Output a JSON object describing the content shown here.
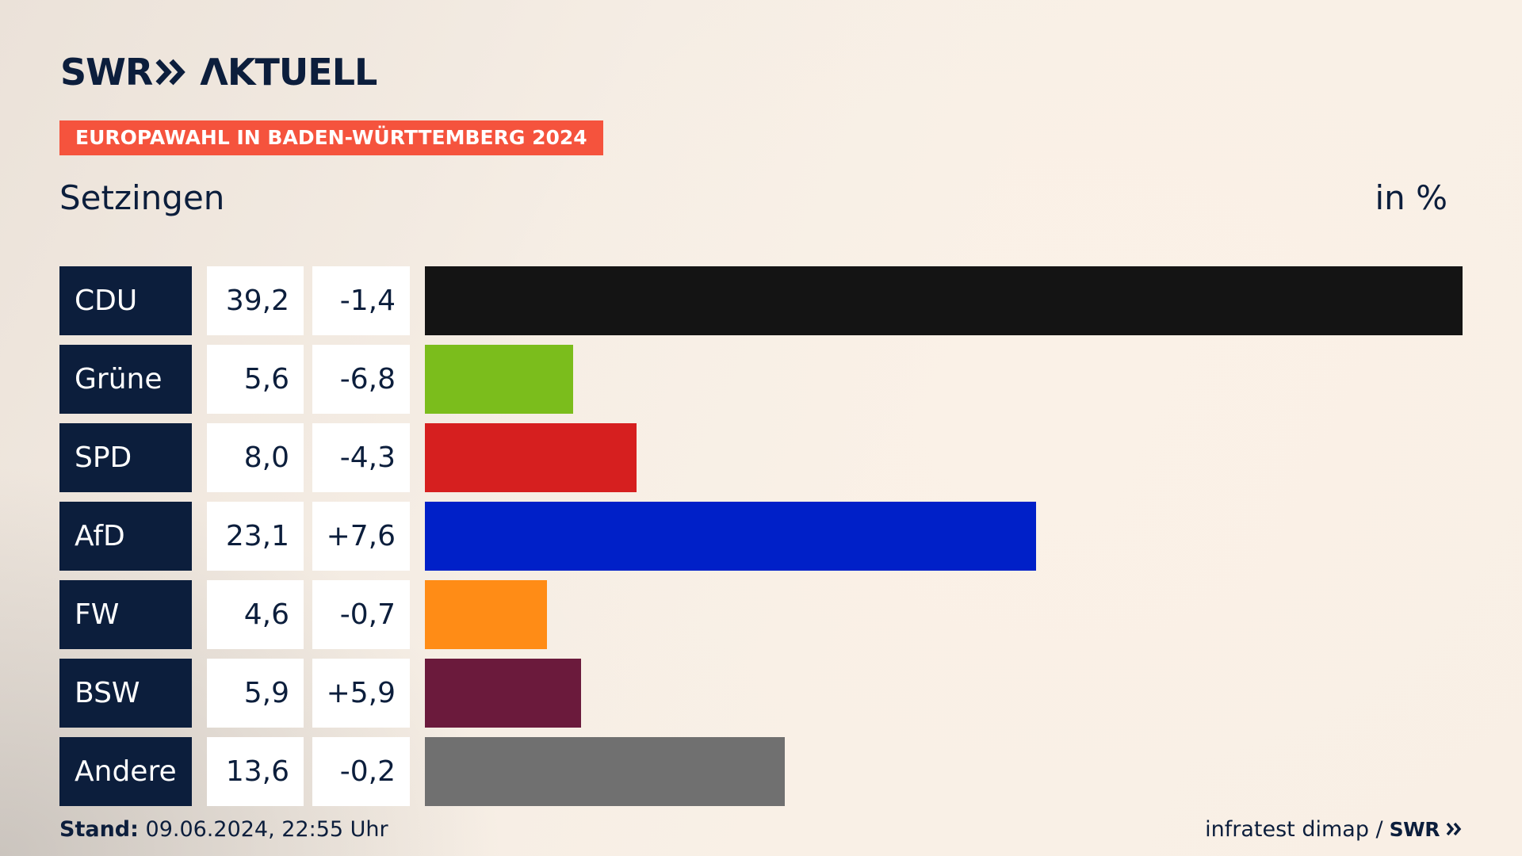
{
  "brand": {
    "swr": "SWR",
    "aktuell": "ΛKTUELL"
  },
  "tag": "EUROPAWAHL IN BADEN-WÜRTTEMBERG 2024",
  "region": "Setzingen",
  "unit": "in %",
  "colors": {
    "navy": "#0c1e3c",
    "tag": "#f5533d"
  },
  "chart_data": {
    "type": "bar",
    "orientation": "horizontal",
    "xlim": [
      0,
      39.2
    ],
    "categories": [
      "CDU",
      "Grüne",
      "SPD",
      "AfD",
      "FW",
      "BSW",
      "Andere"
    ],
    "values": [
      39.2,
      5.6,
      8.0,
      23.1,
      4.6,
      5.9,
      13.6
    ],
    "value_labels": [
      "39,2",
      "5,6",
      "8,0",
      "23,1",
      "4,6",
      "5,9",
      "13,6"
    ],
    "diff_labels": [
      "-1,4",
      "-6,8",
      "-4,3",
      "+7,6",
      "-0,7",
      "+5,9",
      "-0,2"
    ],
    "bar_colors": [
      "#141414",
      "#7bbd1c",
      "#d61f1f",
      "#0020c8",
      "#ff8c16",
      "#6b1a3c",
      "#707070"
    ]
  },
  "footer": {
    "stand_label": "Stand:",
    "stand_value": "09.06.2024, 22:55 Uhr",
    "source": "infratest dimap /",
    "source_brand": "SWR"
  }
}
